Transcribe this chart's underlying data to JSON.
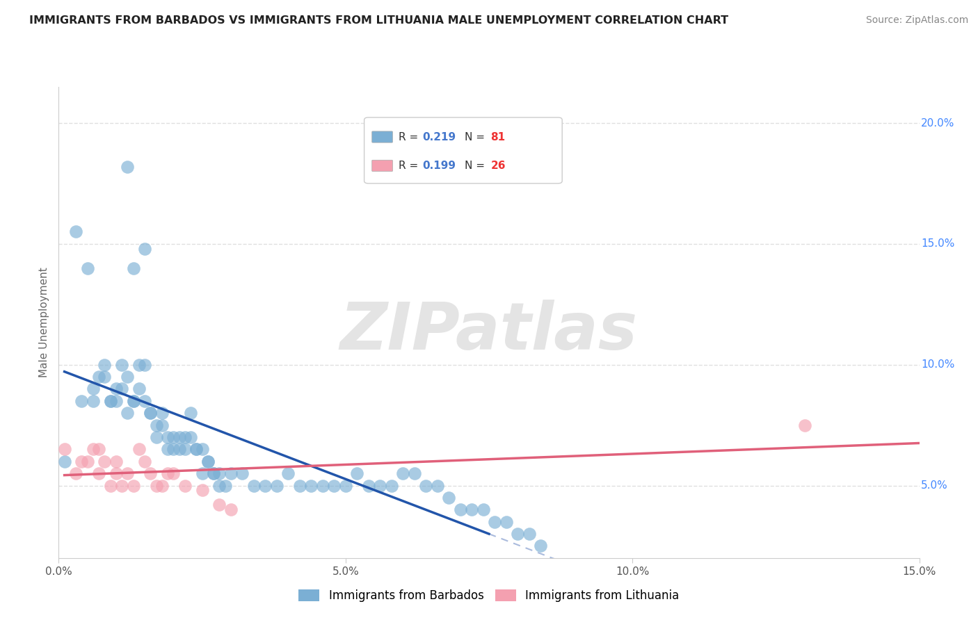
{
  "title": "IMMIGRANTS FROM BARBADOS VS IMMIGRANTS FROM LITHUANIA MALE UNEMPLOYMENT CORRELATION CHART",
  "source": "Source: ZipAtlas.com",
  "ylabel": "Male Unemployment",
  "xlim": [
    0.0,
    0.15
  ],
  "ylim": [
    0.02,
    0.215
  ],
  "yticks": [
    0.05,
    0.1,
    0.15,
    0.2
  ],
  "ytick_labels": [
    "5.0%",
    "10.0%",
    "15.0%",
    "20.0%"
  ],
  "xticks": [
    0.0,
    0.05,
    0.1,
    0.15
  ],
  "xtick_labels": [
    "0.0%",
    "5.0%",
    "10.0%",
    "15.0%"
  ],
  "blue_color": "#7bafd4",
  "pink_color": "#f4a0b0",
  "blue_trend_color": "#2255aa",
  "blue_dashed_color": "#aabbdd",
  "pink_trend_color": "#e0607a",
  "R_blue": "0.219",
  "N_blue": "81",
  "R_pink": "0.199",
  "N_pink": "26",
  "R_color": "#4477cc",
  "N_color": "#ee3333",
  "label_blue": "Immigrants from Barbados",
  "label_pink": "Immigrants from Lithuania",
  "watermark": "ZIPatlas",
  "bg_color": "#ffffff",
  "grid_color": "#e0e0e0",
  "barb_x": [
    0.001,
    0.012,
    0.015,
    0.013,
    0.003,
    0.005,
    0.004,
    0.006,
    0.007,
    0.006,
    0.008,
    0.009,
    0.008,
    0.01,
    0.009,
    0.011,
    0.01,
    0.012,
    0.011,
    0.013,
    0.012,
    0.014,
    0.013,
    0.015,
    0.014,
    0.016,
    0.015,
    0.017,
    0.016,
    0.018,
    0.017,
    0.019,
    0.018,
    0.02,
    0.019,
    0.021,
    0.02,
    0.022,
    0.021,
    0.023,
    0.022,
    0.024,
    0.023,
    0.025,
    0.024,
    0.026,
    0.025,
    0.027,
    0.026,
    0.028,
    0.027,
    0.029,
    0.028,
    0.03,
    0.032,
    0.034,
    0.036,
    0.038,
    0.04,
    0.042,
    0.044,
    0.046,
    0.048,
    0.05,
    0.052,
    0.054,
    0.056,
    0.058,
    0.06,
    0.062,
    0.064,
    0.066,
    0.068,
    0.07,
    0.072,
    0.074,
    0.076,
    0.078,
    0.08,
    0.082,
    0.084
  ],
  "barb_y": [
    0.06,
    0.182,
    0.148,
    0.14,
    0.155,
    0.14,
    0.085,
    0.09,
    0.095,
    0.085,
    0.1,
    0.085,
    0.095,
    0.09,
    0.085,
    0.1,
    0.085,
    0.08,
    0.09,
    0.085,
    0.095,
    0.1,
    0.085,
    0.1,
    0.09,
    0.08,
    0.085,
    0.075,
    0.08,
    0.08,
    0.07,
    0.07,
    0.075,
    0.065,
    0.065,
    0.07,
    0.07,
    0.065,
    0.065,
    0.08,
    0.07,
    0.065,
    0.07,
    0.065,
    0.065,
    0.06,
    0.055,
    0.055,
    0.06,
    0.055,
    0.055,
    0.05,
    0.05,
    0.055,
    0.055,
    0.05,
    0.05,
    0.05,
    0.055,
    0.05,
    0.05,
    0.05,
    0.05,
    0.05,
    0.055,
    0.05,
    0.05,
    0.05,
    0.055,
    0.055,
    0.05,
    0.05,
    0.045,
    0.04,
    0.04,
    0.04,
    0.035,
    0.035,
    0.03,
    0.03,
    0.025
  ],
  "lith_x": [
    0.001,
    0.003,
    0.004,
    0.005,
    0.006,
    0.007,
    0.007,
    0.008,
    0.009,
    0.01,
    0.01,
    0.011,
    0.012,
    0.013,
    0.014,
    0.015,
    0.016,
    0.017,
    0.018,
    0.019,
    0.02,
    0.022,
    0.025,
    0.028,
    0.03,
    0.13
  ],
  "lith_y": [
    0.065,
    0.055,
    0.06,
    0.06,
    0.065,
    0.055,
    0.065,
    0.06,
    0.05,
    0.055,
    0.06,
    0.05,
    0.055,
    0.05,
    0.065,
    0.06,
    0.055,
    0.05,
    0.05,
    0.055,
    0.055,
    0.05,
    0.048,
    0.042,
    0.04,
    0.075
  ],
  "barb_trend_x0": 0.001,
  "barb_trend_x_solid_end": 0.075,
  "barb_trend_x1": 0.15,
  "lith_trend_x0": 0.001,
  "lith_trend_x1": 0.15
}
